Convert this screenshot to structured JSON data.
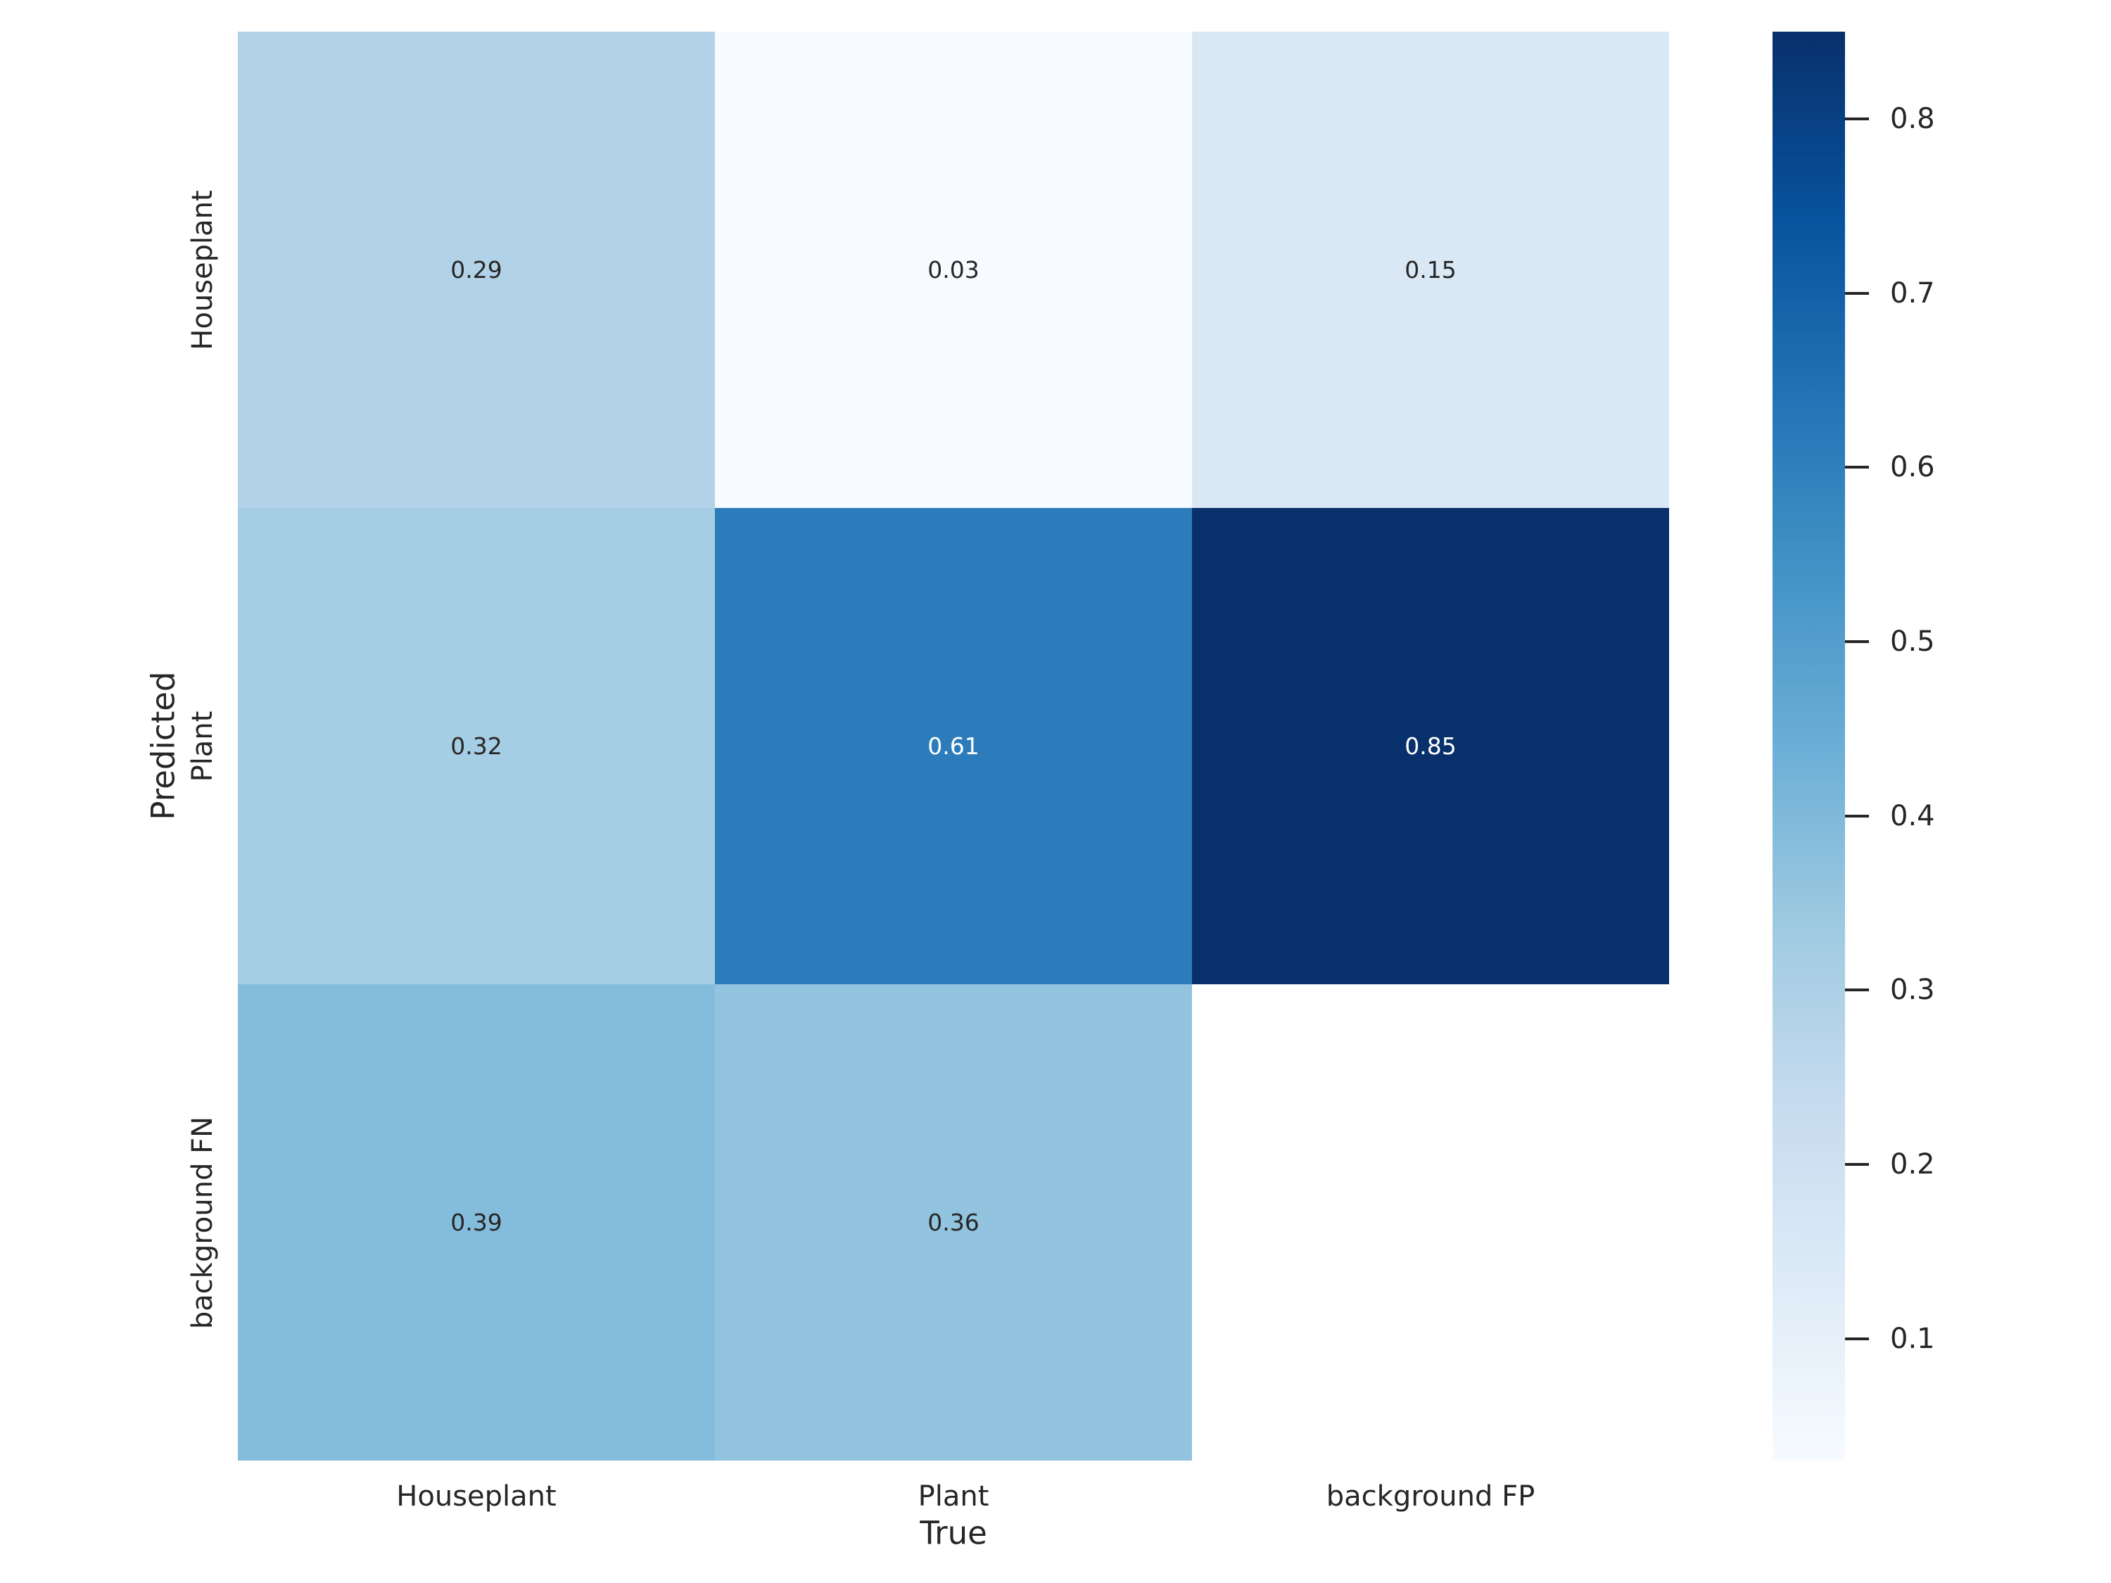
{
  "chart_data": {
    "type": "heatmap",
    "title": "",
    "xlabel": "True",
    "ylabel": "Predicted",
    "x_categories": [
      "Houseplant",
      "Plant",
      "background FP"
    ],
    "y_categories": [
      "Houseplant",
      "Plant",
      "background FN"
    ],
    "values": [
      [
        0.29,
        0.03,
        0.15
      ],
      [
        0.32,
        0.61,
        0.85
      ],
      [
        0.39,
        0.36,
        null
      ]
    ],
    "cell_labels": [
      [
        "0.29",
        "0.03",
        "0.15"
      ],
      [
        "0.32",
        "0.61",
        "0.85"
      ],
      [
        "0.39",
        "0.36",
        ""
      ]
    ],
    "vmin": 0.03,
    "vmax": 0.85,
    "colormap": "Blues",
    "legend_position": "right-colorbar",
    "grid": false,
    "colorbar_ticks": [
      0.8,
      0.7,
      0.6,
      0.5,
      0.4,
      0.3,
      0.2,
      0.1
    ],
    "colorbar_tick_labels": [
      "0.8",
      "0.7",
      "0.6",
      "0.5",
      "0.4",
      "0.3",
      "0.2",
      "0.1"
    ],
    "colors": {
      "background": "#ffffff",
      "text": "#262626",
      "tick_mark": "#262626",
      "annotation_dark": "#262626",
      "annotation_light": "#ffffff",
      "masked_cell": "#ffffff",
      "colormap_anchors": [
        "#f7fbff",
        "#deebf7",
        "#c6dbef",
        "#9ecae1",
        "#6baed6",
        "#4292c6",
        "#2171b5",
        "#08519c",
        "#08306b"
      ]
    }
  }
}
